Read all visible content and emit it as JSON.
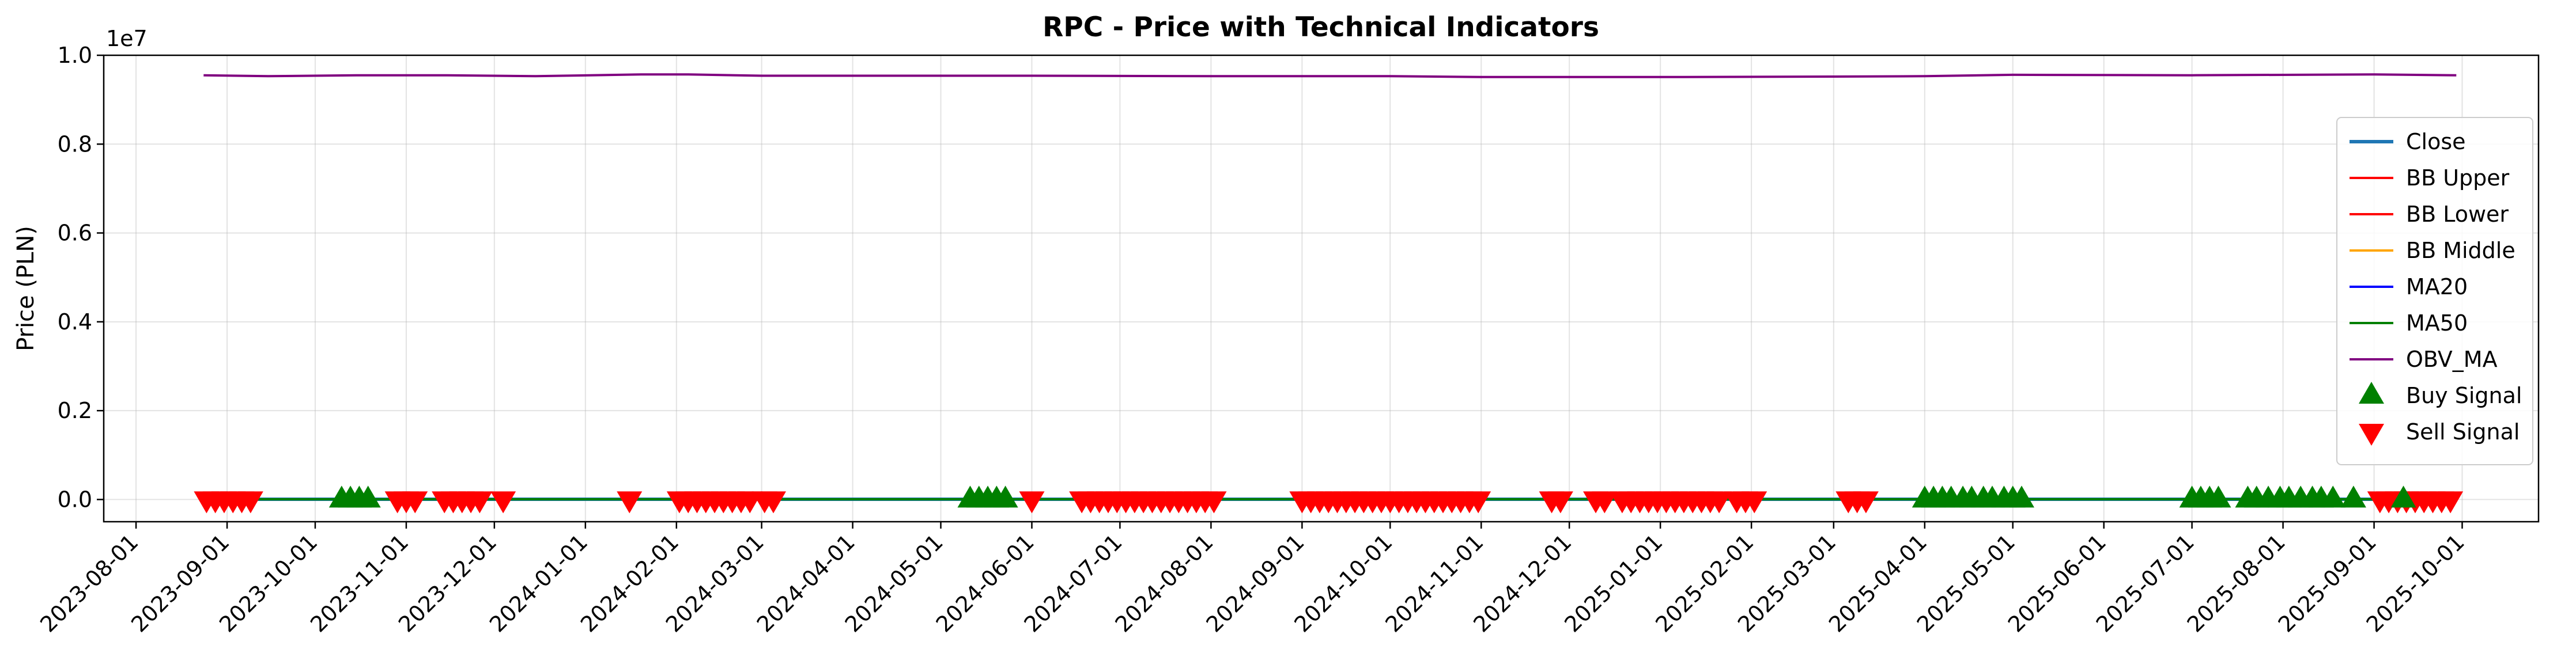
{
  "chart_data": {
    "type": "line",
    "title": "RPC - Price with Technical Indicators",
    "xlabel": "",
    "ylabel": "Price (PLN)",
    "y_offset_text": "1e7",
    "ylim": [
      -0.05,
      1.0
    ],
    "xlim": [
      "2023-07-21",
      "2025-10-27"
    ],
    "yticks": [
      0.0,
      0.2,
      0.4,
      0.6,
      0.8,
      1.0
    ],
    "ytick_labels": [
      "0.0",
      "0.2",
      "0.4",
      "0.6",
      "0.8",
      "1.0"
    ],
    "xticks": [
      "2023-08-01",
      "2023-09-01",
      "2023-10-01",
      "2023-11-01",
      "2023-12-01",
      "2024-01-01",
      "2024-02-01",
      "2024-03-01",
      "2024-04-01",
      "2024-05-01",
      "2024-06-01",
      "2024-07-01",
      "2024-08-01",
      "2024-09-01",
      "2024-10-01",
      "2024-11-01",
      "2024-12-01",
      "2025-01-01",
      "2025-02-01",
      "2025-03-01",
      "2025-04-01",
      "2025-05-01",
      "2025-06-01",
      "2025-07-01",
      "2025-08-01",
      "2025-09-01",
      "2025-10-01"
    ],
    "grid": true,
    "legend_position": "center-right",
    "legend": [
      "Close",
      "BB Upper",
      "BB Lower",
      "BB Middle",
      "MA20",
      "MA50",
      "OBV_MA",
      "Buy Signal",
      "Sell Signal"
    ],
    "series": [
      {
        "name": "Close",
        "color": "#1f77b4",
        "points": [
          [
            "2023-08-24",
            0.0005
          ],
          [
            "2025-09-29",
            0.0005
          ]
        ]
      },
      {
        "name": "BB Upper",
        "color": "#ff0000",
        "points": [
          [
            "2023-08-24",
            0.0005
          ],
          [
            "2025-09-29",
            0.0005
          ]
        ]
      },
      {
        "name": "BB Lower",
        "color": "#ff0000",
        "points": [
          [
            "2023-08-24",
            0.0005
          ],
          [
            "2025-09-29",
            0.0005
          ]
        ]
      },
      {
        "name": "BB Middle",
        "color": "#ffa500",
        "points": [
          [
            "2023-08-24",
            0.0005
          ],
          [
            "2025-09-29",
            0.0005
          ]
        ]
      },
      {
        "name": "MA20",
        "color": "#0000ff",
        "points": [
          [
            "2023-08-24",
            0.0005
          ],
          [
            "2025-09-29",
            0.0005
          ]
        ]
      },
      {
        "name": "MA50",
        "color": "#008000",
        "points": [
          [
            "2023-08-24",
            0.0005
          ],
          [
            "2025-09-29",
            0.0005
          ]
        ]
      },
      {
        "name": "OBV_MA",
        "color": "#800080",
        "points": [
          [
            "2023-08-24",
            0.955
          ],
          [
            "2023-09-15",
            0.953
          ],
          [
            "2023-10-15",
            0.955
          ],
          [
            "2023-11-15",
            0.955
          ],
          [
            "2023-12-15",
            0.953
          ],
          [
            "2024-01-20",
            0.957
          ],
          [
            "2024-02-05",
            0.957
          ],
          [
            "2024-03-01",
            0.954
          ],
          [
            "2024-04-15",
            0.954
          ],
          [
            "2024-06-01",
            0.954
          ],
          [
            "2024-08-01",
            0.953
          ],
          [
            "2024-10-01",
            0.953
          ],
          [
            "2024-11-01",
            0.951
          ],
          [
            "2025-01-01",
            0.951
          ],
          [
            "2025-03-01",
            0.952
          ],
          [
            "2025-04-01",
            0.953
          ],
          [
            "2025-05-01",
            0.956
          ],
          [
            "2025-07-01",
            0.955
          ],
          [
            "2025-09-01",
            0.957
          ],
          [
            "2025-09-29",
            0.955
          ]
        ]
      }
    ],
    "buy_signals": {
      "name": "Buy Signal",
      "color": "#008000",
      "y": 0.0,
      "dates": [
        "2023-10-10",
        "2023-10-13",
        "2023-10-16",
        "2023-10-19",
        "2024-05-11",
        "2024-05-14",
        "2024-05-17",
        "2024-05-20",
        "2024-05-23",
        "2025-04-01",
        "2025-04-04",
        "2025-04-07",
        "2025-04-10",
        "2025-04-14",
        "2025-04-17",
        "2025-04-21",
        "2025-04-24",
        "2025-04-28",
        "2025-05-01",
        "2025-05-04",
        "2025-07-01",
        "2025-07-04",
        "2025-07-07",
        "2025-07-10",
        "2025-07-20",
        "2025-07-23",
        "2025-07-27",
        "2025-07-31",
        "2025-08-03",
        "2025-08-07",
        "2025-08-11",
        "2025-08-14",
        "2025-08-18",
        "2025-08-25",
        "2025-09-11"
      ]
    },
    "sell_signals": {
      "name": "Sell Signal",
      "color": "#ff0000",
      "y": 0.0,
      "dates": [
        "2023-08-25",
        "2023-08-28",
        "2023-08-31",
        "2023-09-03",
        "2023-09-06",
        "2023-09-09",
        "2023-10-29",
        "2023-11-01",
        "2023-11-04",
        "2023-11-14",
        "2023-11-17",
        "2023-11-20",
        "2023-11-23",
        "2023-11-26",
        "2023-12-04",
        "2024-01-16",
        "2024-02-02",
        "2024-02-05",
        "2024-02-08",
        "2024-02-11",
        "2024-02-14",
        "2024-02-17",
        "2024-02-20",
        "2024-02-23",
        "2024-02-26",
        "2024-03-02",
        "2024-03-05",
        "2024-06-01",
        "2024-06-18",
        "2024-06-21",
        "2024-06-24",
        "2024-06-27",
        "2024-06-30",
        "2024-07-03",
        "2024-07-06",
        "2024-07-09",
        "2024-07-12",
        "2024-07-15",
        "2024-07-18",
        "2024-07-21",
        "2024-07-24",
        "2024-07-27",
        "2024-07-30",
        "2024-08-02",
        "2024-09-01",
        "2024-09-04",
        "2024-09-07",
        "2024-09-10",
        "2024-09-13",
        "2024-09-16",
        "2024-09-19",
        "2024-09-22",
        "2024-09-25",
        "2024-09-28",
        "2024-10-01",
        "2024-10-04",
        "2024-10-07",
        "2024-10-10",
        "2024-10-13",
        "2024-10-16",
        "2024-10-19",
        "2024-10-22",
        "2024-10-25",
        "2024-10-28",
        "2024-10-31",
        "2024-11-25",
        "2024-11-28",
        "2024-12-10",
        "2024-12-13",
        "2024-12-19",
        "2024-12-22",
        "2024-12-25",
        "2024-12-28",
        "2024-12-31",
        "2025-01-03",
        "2025-01-06",
        "2025-01-09",
        "2025-01-12",
        "2025-01-15",
        "2025-01-18",
        "2025-01-21",
        "2025-01-27",
        "2025-01-30",
        "2025-02-02",
        "2025-03-06",
        "2025-03-09",
        "2025-03-12",
        "2025-09-03",
        "2025-09-06",
        "2025-09-09",
        "2025-09-12",
        "2025-09-15",
        "2025-09-18",
        "2025-09-21",
        "2025-09-24",
        "2025-09-27"
      ]
    }
  }
}
